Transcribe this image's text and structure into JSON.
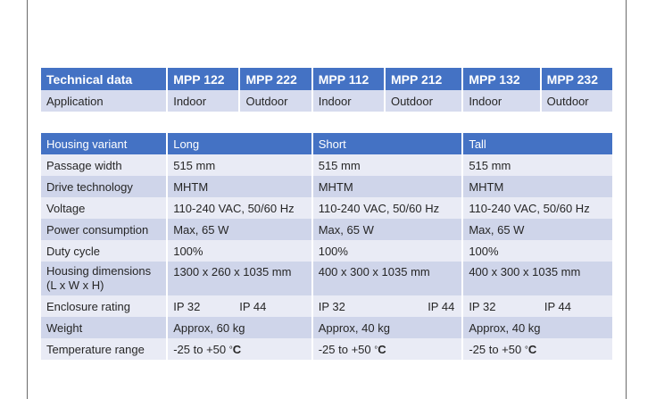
{
  "header": {
    "col0": "Technical data",
    "models": [
      "MPP 122",
      "MPP 222",
      "MPP 112",
      "MPP 212",
      "MPP 132",
      "MPP 232"
    ]
  },
  "application": {
    "label": "Application",
    "values": [
      "Indoor",
      "Outdoor",
      "Indoor",
      "Outdoor",
      "Indoor",
      "Outdoor"
    ]
  },
  "housing_variant": {
    "label": "Housing variant",
    "values": [
      "Long",
      "Short",
      "Tall"
    ]
  },
  "rows": [
    {
      "label": "Passage width",
      "values": [
        "515 mm",
        "515 mm",
        "515 mm"
      ]
    },
    {
      "label": "Drive technology",
      "values": [
        "MHTM",
        "MHTM",
        "MHTM"
      ]
    },
    {
      "label": "Voltage",
      "values": [
        "110-240 VAC, 50/60 Hz",
        "110-240 VAC, 50/60 Hz",
        "110-240 VAC, 50/60 Hz"
      ]
    },
    {
      "label": "Power consumption",
      "values": [
        "Max, 65 W",
        "Max, 65 W",
        "Max, 65 W"
      ]
    },
    {
      "label": "Duty cycle",
      "values": [
        "100%",
        "100%",
        "100%"
      ]
    }
  ],
  "dimensions": {
    "label_line1": "Housing dimensions",
    "label_line2": "(L x W x H)",
    "values": [
      "1300 x 260 x 1035 mm",
      "400 x 300 x 1035 mm",
      "400 x 300 x 1035 mm"
    ]
  },
  "enclosure": {
    "label": "Enclosure rating",
    "values": [
      [
        "IP 32",
        "IP 44"
      ],
      [
        "IP 32",
        "IP 44"
      ],
      [
        "IP 32",
        "IP 44"
      ]
    ]
  },
  "weight": {
    "label": "Weight",
    "values": [
      "Approx, 60 kg",
      "Approx, 40 kg",
      "Approx, 40 kg"
    ]
  },
  "temperature": {
    "label": "Temperature range",
    "value_prefix": "-25 to +50 ",
    "unit_deg": "°",
    "unit_c": "C"
  }
}
